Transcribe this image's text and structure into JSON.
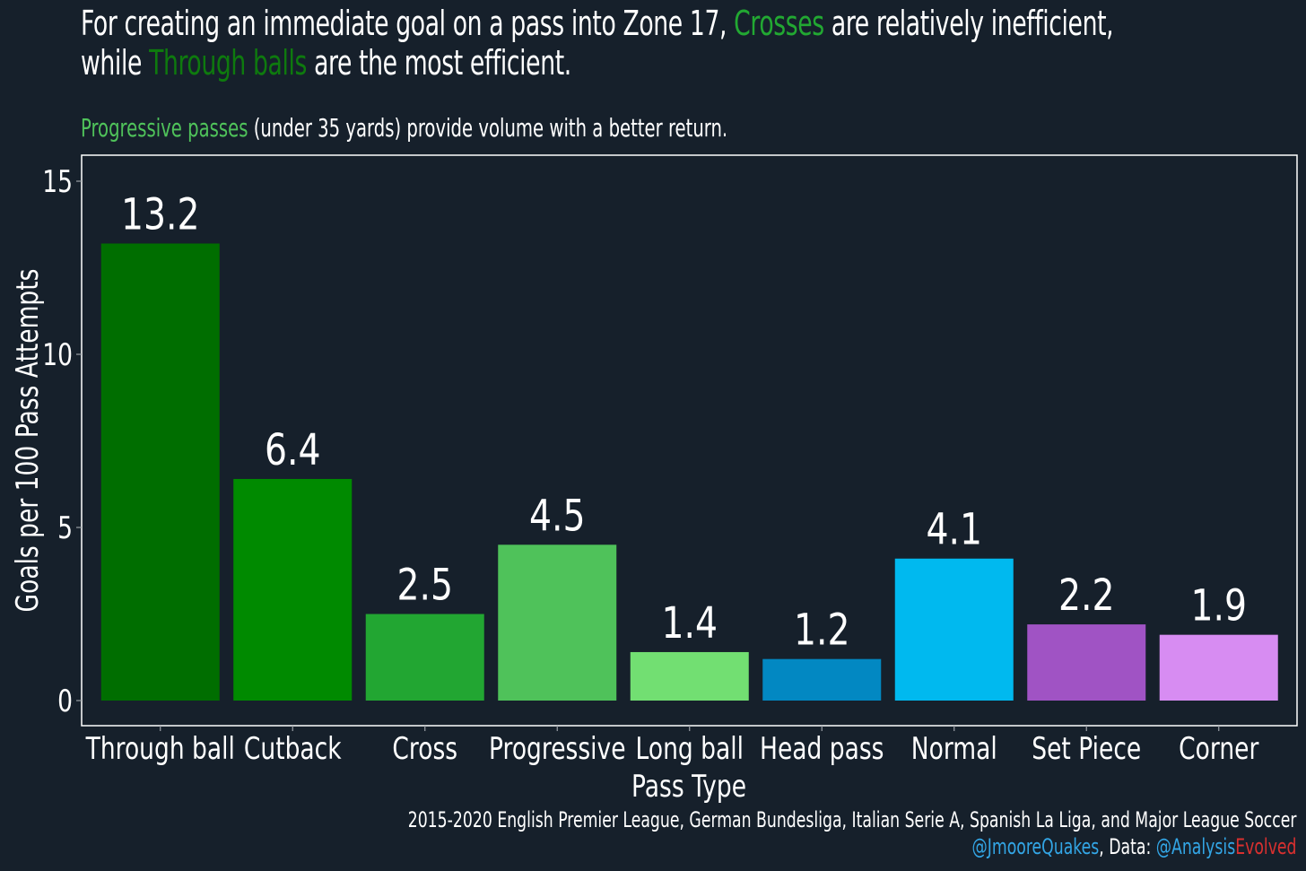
{
  "title": {
    "line1_pre": "For creating an immediate goal on a pass into Zone 17, ",
    "line1_hl": "Crosses",
    "line1_post": " are relatively inefficient,",
    "line2_pre": "while ",
    "line2_hl": "Through balls",
    "line2_post": " are the most efficient."
  },
  "subtitle": {
    "hl": "Progressive passes",
    "post": " (under 35 yards) provide volume with a better return."
  },
  "caption": {
    "line1": "2015-2020 English Premier League, German Bundesliga, Italian Serie A, Spanish La Liga, and Major League Soccer",
    "handle": "@JmooreQuakes",
    "data_label": ", Data: ",
    "source_a": "@Analysis",
    "source_b": "Evolved"
  },
  "colors": {
    "background": "#16202b",
    "crosses": "#22a832",
    "through_balls": "#0e7a0e",
    "progressive": "#4fc25a",
    "handle": "#33a6e6",
    "evolved": "#d9302f"
  },
  "chart_data": {
    "type": "bar",
    "categories": [
      "Through ball",
      "Cutback",
      "Cross",
      "Progressive",
      "Long ball",
      "Head pass",
      "Normal",
      "Set Piece",
      "Corner"
    ],
    "values": [
      13.2,
      6.4,
      2.5,
      4.5,
      1.4,
      1.2,
      4.1,
      2.2,
      1.9
    ],
    "data_labels": [
      "13.2",
      "6.4",
      "2.5",
      "4.5",
      "1.4",
      "1.2",
      "4.1",
      "2.2",
      "1.9"
    ],
    "bar_colors": [
      "#006e00",
      "#008a00",
      "#22a632",
      "#4fc25a",
      "#72df72",
      "#0288c2",
      "#00b9ef",
      "#a053c4",
      "#d78cf2"
    ],
    "xlabel": "Pass Type",
    "ylabel": "Goals per 100 Pass Attempts",
    "ylim": [
      0,
      15.6
    ],
    "yticks": [
      0,
      5,
      10,
      15
    ],
    "grid": false
  }
}
